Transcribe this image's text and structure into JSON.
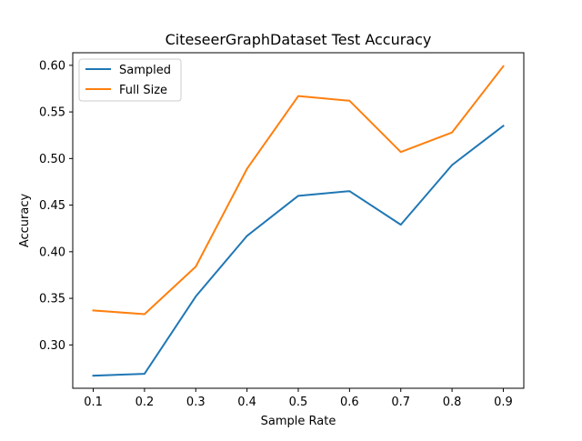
{
  "chart_data": {
    "type": "line",
    "title": "CiteseerGraphDataset Test Accuracy",
    "xlabel": "Sample Rate",
    "ylabel": "Accuracy",
    "x": [
      0.1,
      0.2,
      0.3,
      0.4,
      0.5,
      0.6,
      0.7,
      0.8,
      0.9
    ],
    "x_ticks": [
      "0.1",
      "0.2",
      "0.3",
      "0.4",
      "0.5",
      "0.6",
      "0.7",
      "0.8",
      "0.9"
    ],
    "y_ticks": [
      "0.30",
      "0.35",
      "0.40",
      "0.45",
      "0.50",
      "0.55",
      "0.60"
    ],
    "xlim": [
      0.06,
      0.94
    ],
    "ylim": [
      0.2535,
      0.6135
    ],
    "grid": false,
    "legend_position": "top-left",
    "series": [
      {
        "name": "Sampled",
        "color": "#1f77b4",
        "values": [
          0.267,
          0.269,
          0.352,
          0.417,
          0.46,
          0.465,
          0.429,
          0.493,
          0.535
        ]
      },
      {
        "name": "Full Size",
        "color": "#ff7f0e",
        "values": [
          0.337,
          0.333,
          0.384,
          0.489,
          0.567,
          0.562,
          0.507,
          0.528,
          0.599
        ]
      }
    ]
  }
}
